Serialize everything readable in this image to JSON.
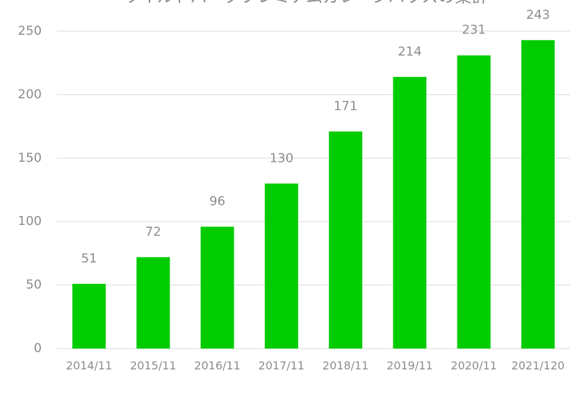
{
  "chart_data": {
    "type": "bar",
    "title": "ワイルドパークプレミアムガレージハウスの集計",
    "categories": [
      "2014/11",
      "2015/11",
      "2016/11",
      "2017/11",
      "2018/11",
      "2019/11",
      "2020/11",
      "2021/120"
    ],
    "values": [
      51,
      72,
      96,
      130,
      171,
      214,
      231,
      243
    ],
    "color": "#00cc00",
    "ylim": [
      0,
      250
    ],
    "yticks": [
      0,
      50,
      100,
      150,
      200,
      250
    ],
    "grid": true
  }
}
